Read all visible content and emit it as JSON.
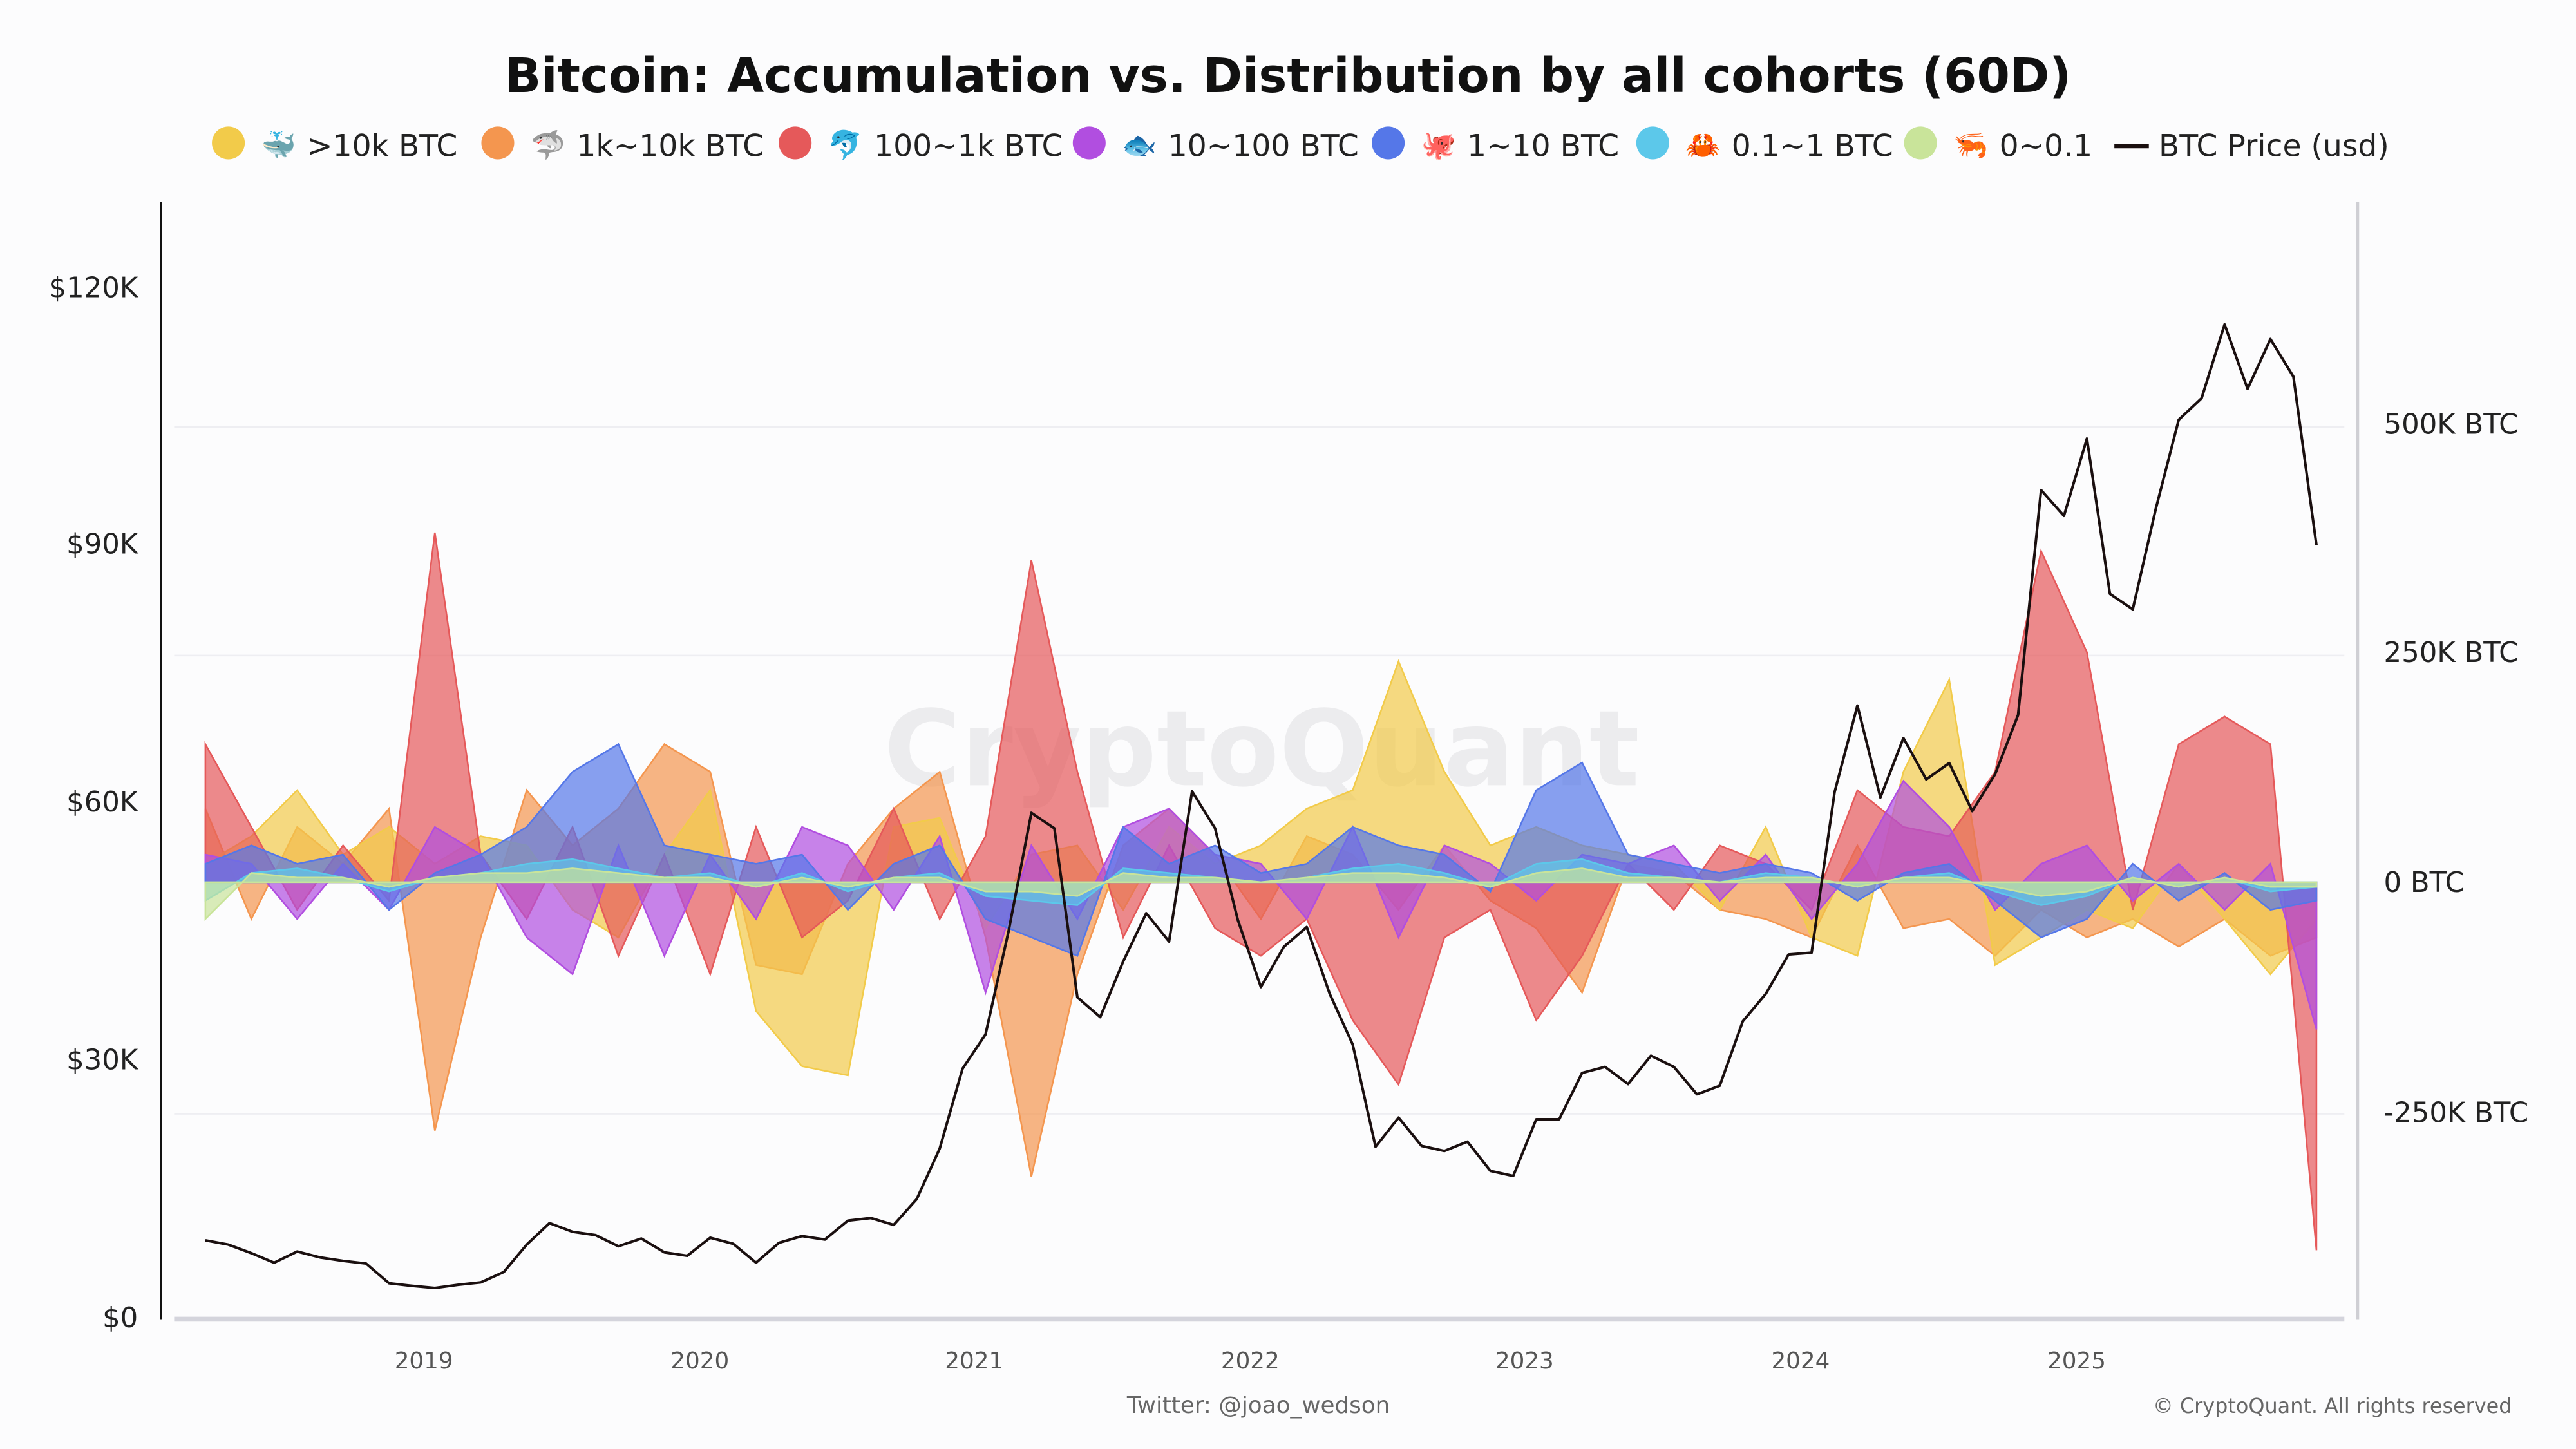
{
  "chart_data": {
    "type": "area",
    "title": "Bitcoin: Accumulation vs. Distribution by all cohorts (60D)",
    "legend_placement": "top",
    "grid": true,
    "left_axis": {
      "ticks": [
        "$0",
        "$30K",
        "$60K",
        "$90K",
        "$120K"
      ],
      "range": [
        0,
        130000
      ],
      "unit": "usd"
    },
    "right_axis": {
      "ticks": [
        "-250K BTC",
        "0 BTC",
        "250K BTC",
        "500K BTC"
      ],
      "range_k_btc": [
        -473,
        739
      ]
    },
    "x_ticks": [
      "2019",
      "2020",
      "2021",
      "2022",
      "2023",
      "2024",
      "2025"
    ],
    "legend": [
      {
        "label": ">10k BTC",
        "color": "#f2cb4a",
        "icon": "whale-icon",
        "glyph": "🐳"
      },
      {
        "label": "1k~10k BTC",
        "color": "#f4964f",
        "icon": "shark-icon",
        "glyph": "🦈"
      },
      {
        "label": "100~1k BTC",
        "color": "#e5595a",
        "icon": "dolphin-icon",
        "glyph": "🐬"
      },
      {
        "label": "10~100 BTC",
        "color": "#b14ee0",
        "icon": "fish-icon",
        "glyph": "🐟"
      },
      {
        "label": "1~10 BTC",
        "color": "#5577e8",
        "icon": "octopus-icon",
        "glyph": "🐙"
      },
      {
        "label": "0.1~1 BTC",
        "color": "#5cc8ea",
        "icon": "crab-icon",
        "glyph": "🦀"
      },
      {
        "label": "0~0.1",
        "color": "#c9e49a",
        "icon": "shrimp-icon",
        "glyph": "🦐"
      },
      {
        "label": "BTC Price (usd)",
        "color": "#1a0f0f",
        "icon": "line-icon"
      }
    ],
    "cohort_dates": [
      "2018-03",
      "2018-05",
      "2018-07",
      "2018-09",
      "2018-11",
      "2019-01",
      "2019-03",
      "2019-05",
      "2019-07",
      "2019-09",
      "2019-11",
      "2020-01",
      "2020-03",
      "2020-05",
      "2020-07",
      "2020-09",
      "2020-11",
      "2021-01",
      "2021-03",
      "2021-05",
      "2021-07",
      "2021-09",
      "2021-11",
      "2022-01",
      "2022-03",
      "2022-05",
      "2022-07",
      "2022-09",
      "2022-11",
      "2023-01",
      "2023-03",
      "2023-05",
      "2023-07",
      "2023-09",
      "2023-11",
      "2024-01",
      "2024-03",
      "2024-05",
      "2024-07",
      "2024-09",
      "2024-11",
      "2025-01",
      "2025-03",
      "2025-05",
      "2025-07",
      "2025-09",
      "2025-11"
    ],
    "series_unit": "thousand BTC",
    "series": [
      {
        "name": "1k~10k BTC",
        "color": "#f4964f",
        "values": [
          80,
          -40,
          60,
          20,
          80,
          -270,
          -60,
          100,
          40,
          80,
          150,
          120,
          -90,
          -100,
          20,
          80,
          120,
          -60,
          -320,
          -100,
          40,
          80,
          30,
          -40,
          50,
          30,
          -30,
          40,
          -20,
          -50,
          -120,
          20,
          10,
          -30,
          -40,
          -60,
          40,
          -50,
          -40,
          -80,
          -30,
          -60,
          -40,
          -70,
          -40,
          -80,
          -60
        ]
      },
      {
        "name": ">10k BTC",
        "color": "#f2cb4a",
        "values": [
          20,
          50,
          100,
          30,
          60,
          20,
          50,
          40,
          -30,
          -60,
          30,
          100,
          -140,
          -200,
          -210,
          60,
          70,
          -50,
          30,
          40,
          -30,
          60,
          20,
          40,
          80,
          100,
          240,
          120,
          40,
          60,
          40,
          30,
          20,
          -30,
          60,
          -60,
          -80,
          120,
          220,
          -90,
          -60,
          -30,
          -50,
          20,
          -40,
          -100,
          -40
        ]
      },
      {
        "name": "100~1k BTC",
        "color": "#e5595a",
        "values": [
          150,
          60,
          -30,
          40,
          -20,
          380,
          30,
          -40,
          60,
          -80,
          30,
          -100,
          60,
          -60,
          -20,
          80,
          -40,
          50,
          350,
          120,
          -60,
          40,
          -50,
          -80,
          -40,
          -150,
          -220,
          -60,
          -30,
          -150,
          -80,
          20,
          -30,
          40,
          20,
          -30,
          100,
          60,
          50,
          120,
          360,
          250,
          -30,
          150,
          180,
          150,
          -400
        ]
      },
      {
        "name": "10~100 BTC",
        "color": "#b14ee0",
        "values": [
          30,
          20,
          -40,
          20,
          -30,
          60,
          30,
          -60,
          -100,
          40,
          -80,
          30,
          -40,
          60,
          40,
          -30,
          50,
          -120,
          40,
          -40,
          60,
          80,
          30,
          20,
          -40,
          60,
          -60,
          40,
          20,
          -20,
          30,
          20,
          40,
          -20,
          30,
          -40,
          20,
          110,
          60,
          -30,
          20,
          40,
          -20,
          20,
          -30,
          20,
          -160
        ]
      },
      {
        "name": "1~10 BTC",
        "color": "#5577e8",
        "values": [
          20,
          40,
          20,
          30,
          -30,
          10,
          30,
          60,
          120,
          150,
          40,
          30,
          20,
          30,
          -30,
          20,
          40,
          -40,
          -60,
          -80,
          60,
          20,
          40,
          10,
          20,
          60,
          40,
          30,
          -10,
          100,
          130,
          30,
          20,
          10,
          20,
          10,
          -20,
          10,
          20,
          -20,
          -60,
          -40,
          20,
          -20,
          10,
          -30,
          -20
        ]
      },
      {
        "name": "0.1~1 BTC",
        "color": "#5cc8ea",
        "values": [
          -20,
          10,
          15,
          5,
          -10,
          5,
          10,
          20,
          25,
          15,
          5,
          10,
          -5,
          10,
          -10,
          5,
          10,
          -15,
          -20,
          -25,
          15,
          10,
          5,
          0,
          5,
          15,
          20,
          10,
          -5,
          20,
          25,
          10,
          5,
          0,
          10,
          5,
          -5,
          5,
          10,
          -10,
          -25,
          -15,
          5,
          -5,
          5,
          -10,
          -5
        ]
      },
      {
        "name": "0~0.1",
        "color": "#c9e49a",
        "values": [
          -40,
          10,
          5,
          5,
          -5,
          5,
          10,
          10,
          15,
          10,
          5,
          5,
          -5,
          5,
          -5,
          5,
          5,
          -10,
          -10,
          -15,
          10,
          5,
          5,
          0,
          5,
          10,
          10,
          5,
          -5,
          10,
          15,
          5,
          5,
          0,
          5,
          5,
          -5,
          5,
          5,
          -5,
          -15,
          -10,
          5,
          -5,
          5,
          -5,
          -5
        ]
      }
    ],
    "price": [
      [
        "2018-03",
        9000
      ],
      [
        "2018-04",
        8500
      ],
      [
        "2018-05",
        7500
      ],
      [
        "2018-06",
        6400
      ],
      [
        "2018-07",
        7700
      ],
      [
        "2018-08",
        7000
      ],
      [
        "2018-09",
        6600
      ],
      [
        "2018-10",
        6300
      ],
      [
        "2018-11",
        4000
      ],
      [
        "2018-12",
        3700
      ],
      [
        "2019-01",
        3450
      ],
      [
        "2019-02",
        3800
      ],
      [
        "2019-03",
        4100
      ],
      [
        "2019-04",
        5300
      ],
      [
        "2019-05",
        8500
      ],
      [
        "2019-06",
        11000
      ],
      [
        "2019-07",
        10000
      ],
      [
        "2019-08",
        9600
      ],
      [
        "2019-09",
        8300
      ],
      [
        "2019-10",
        9200
      ],
      [
        "2019-11",
        7600
      ],
      [
        "2019-12",
        7200
      ],
      [
        "2020-01",
        9300
      ],
      [
        "2020-02",
        8600
      ],
      [
        "2020-03",
        6400
      ],
      [
        "2020-04",
        8700
      ],
      [
        "2020-05",
        9500
      ],
      [
        "2020-06",
        9100
      ],
      [
        "2020-07",
        11300
      ],
      [
        "2020-08",
        11600
      ],
      [
        "2020-09",
        10800
      ],
      [
        "2020-10",
        13800
      ],
      [
        "2020-11",
        19700
      ],
      [
        "2020-12",
        29000
      ],
      [
        "2021-01",
        33000
      ],
      [
        "2021-02",
        45000
      ],
      [
        "2021-03",
        58800
      ],
      [
        "2021-04",
        57000
      ],
      [
        "2021-05",
        37300
      ],
      [
        "2021-06",
        35000
      ],
      [
        "2021-07",
        41500
      ],
      [
        "2021-08",
        47100
      ],
      [
        "2021-09",
        43800
      ],
      [
        "2021-10",
        61300
      ],
      [
        "2021-11",
        57000
      ],
      [
        "2021-12",
        46300
      ],
      [
        "2022-01",
        38500
      ],
      [
        "2022-02",
        43200
      ],
      [
        "2022-03",
        45500
      ],
      [
        "2022-04",
        37700
      ],
      [
        "2022-05",
        31800
      ],
      [
        "2022-06",
        19900
      ],
      [
        "2022-07",
        23300
      ],
      [
        "2022-08",
        20000
      ],
      [
        "2022-09",
        19400
      ],
      [
        "2022-10",
        20500
      ],
      [
        "2022-11",
        17100
      ],
      [
        "2022-12",
        16500
      ],
      [
        "2023-01",
        23100
      ],
      [
        "2023-02",
        23100
      ],
      [
        "2023-03",
        28500
      ],
      [
        "2023-04",
        29200
      ],
      [
        "2023-05",
        27200
      ],
      [
        "2023-06",
        30500
      ],
      [
        "2023-07",
        29200
      ],
      [
        "2023-08",
        26000
      ],
      [
        "2023-09",
        27000
      ],
      [
        "2023-10",
        34500
      ],
      [
        "2023-11",
        37700
      ],
      [
        "2023-12",
        42300
      ],
      [
        "2024-01",
        42500
      ],
      [
        "2024-02",
        61200
      ],
      [
        "2024-03",
        71300
      ],
      [
        "2024-04",
        60600
      ],
      [
        "2024-05",
        67500
      ],
      [
        "2024-06",
        62700
      ],
      [
        "2024-07",
        64600
      ],
      [
        "2024-08",
        59000
      ],
      [
        "2024-09",
        63300
      ],
      [
        "2024-10",
        70200
      ],
      [
        "2024-11",
        96400
      ],
      [
        "2024-12",
        93400
      ],
      [
        "2025-01",
        102400
      ],
      [
        "2025-02",
        84300
      ],
      [
        "2025-03",
        82500
      ],
      [
        "2025-04",
        94200
      ],
      [
        "2025-05",
        104600
      ],
      [
        "2025-06",
        107100
      ],
      [
        "2025-07",
        115700
      ],
      [
        "2025-08",
        108200
      ],
      [
        "2025-09",
        114000
      ],
      [
        "2025-10",
        109600
      ],
      [
        "2025-11",
        90000
      ]
    ]
  },
  "footer": {
    "credit": "Twitter: @joao_wedson",
    "copyright": "© CryptoQuant. All rights reserved"
  },
  "watermark": "CryptoQuant"
}
